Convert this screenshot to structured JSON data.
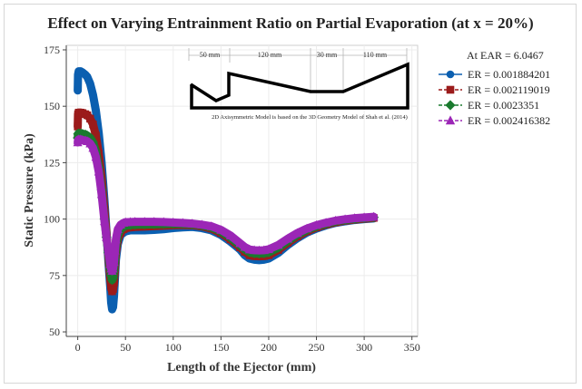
{
  "chart_data": {
    "type": "line",
    "title": "Effect on Varying Entrainment Ratio on Partial Evaporation (at x = 20%)",
    "xlabel": "Length of the Ejector (mm)",
    "ylabel": "Static Pressure (kPa)",
    "xlim": [
      -12,
      356
    ],
    "ylim": [
      48,
      177
    ],
    "xticks": [
      0,
      50,
      100,
      150,
      200,
      250,
      300,
      350
    ],
    "yticks": [
      50,
      75,
      100,
      125,
      150,
      175
    ],
    "grid": true,
    "legend": {
      "position": "right",
      "header": "At EAR = 6.0467"
    },
    "series": [
      {
        "name": "ER = 0.001884201",
        "color": "#0b5fb0",
        "marker": "circle",
        "line_style": "solid",
        "x": [
          0,
          0.3,
          1,
          3,
          5,
          8,
          10,
          13,
          16,
          19,
          22,
          25,
          28,
          30,
          32,
          34,
          35,
          36,
          37,
          38,
          39,
          40,
          42,
          45,
          48,
          50,
          55,
          60,
          70,
          80,
          90,
          100,
          110,
          120,
          130,
          140,
          150,
          160,
          170,
          175,
          180,
          185,
          190,
          195,
          200,
          210,
          220,
          230,
          240,
          250,
          260,
          270,
          280,
          290,
          300,
          310
        ],
        "y": [
          157,
          164,
          165.5,
          165.5,
          165,
          164,
          163,
          160,
          155,
          148,
          138,
          125,
          108,
          95,
          82,
          70,
          63,
          60,
          61,
          66,
          74,
          82,
          89,
          93,
          94,
          94.5,
          95,
          95,
          95,
          95.2,
          95.5,
          96,
          96.3,
          96.5,
          96,
          95,
          93,
          90,
          86.5,
          84,
          82.5,
          82,
          81.8,
          82,
          82.5,
          85,
          88.5,
          91.5,
          94,
          95.8,
          97.2,
          98.3,
          99,
          99.6,
          100,
          100.3
        ]
      },
      {
        "name": "ER = 0.002119019",
        "color": "#9b1b1b",
        "marker": "square",
        "line_style": "dashed",
        "x": [
          0,
          0.3,
          1,
          3,
          5,
          8,
          10,
          13,
          16,
          19,
          22,
          25,
          28,
          30,
          32,
          34,
          35,
          36,
          37,
          38,
          39,
          40,
          42,
          45,
          48,
          50,
          55,
          60,
          70,
          80,
          90,
          100,
          110,
          120,
          130,
          140,
          150,
          160,
          170,
          175,
          180,
          185,
          190,
          195,
          200,
          210,
          220,
          230,
          240,
          250,
          260,
          270,
          280,
          290,
          300,
          310
        ],
        "y": [
          141,
          146.5,
          147.2,
          147.2,
          147,
          146.5,
          146,
          144.5,
          142,
          137,
          129,
          118,
          104,
          94,
          84,
          74,
          70,
          68,
          69,
          72,
          78,
          85,
          91,
          94,
          95.5,
          96,
          96.3,
          96.5,
          96.7,
          96.9,
          97.1,
          97.3,
          97.4,
          97.3,
          96.8,
          95.8,
          93.8,
          91,
          87.5,
          85.5,
          84,
          83.6,
          83.5,
          83.6,
          84,
          86.3,
          89.5,
          92.3,
          94.6,
          96.3,
          97.6,
          98.6,
          99.3,
          99.8,
          100.2,
          100.5
        ]
      },
      {
        "name": "ER = 0.0023351",
        "color": "#1a7a2e",
        "marker": "diamond",
        "line_style": "dashed",
        "x": [
          0,
          0.3,
          1,
          3,
          5,
          8,
          10,
          13,
          16,
          19,
          22,
          25,
          28,
          30,
          32,
          34,
          35,
          36,
          37,
          38,
          39,
          40,
          42,
          45,
          48,
          50,
          55,
          60,
          70,
          80,
          90,
          100,
          110,
          120,
          130,
          140,
          150,
          160,
          170,
          175,
          180,
          185,
          190,
          195,
          200,
          210,
          220,
          230,
          240,
          250,
          260,
          270,
          280,
          290,
          300,
          310
        ],
        "y": [
          136,
          137.7,
          138,
          138,
          137.8,
          137.5,
          137,
          136,
          134,
          130,
          123,
          113,
          100,
          92,
          85,
          78,
          75,
          73,
          74,
          77,
          82,
          88,
          93,
          95.5,
          96.5,
          97,
          97.3,
          97.5,
          97.6,
          97.7,
          97.8,
          97.9,
          97.9,
          97.7,
          97.2,
          96.3,
          94.5,
          91.8,
          88.3,
          86.5,
          85.2,
          84.8,
          84.7,
          84.8,
          85.2,
          87.3,
          90.3,
          93,
          95.2,
          96.8,
          98,
          99,
          99.6,
          100.1,
          100.5,
          100.8
        ]
      },
      {
        "name": "ER = 0.002416382",
        "color": "#9b26b6",
        "marker": "triangle",
        "line_style": "dashed",
        "x": [
          0,
          0.3,
          1,
          3,
          5,
          8,
          10,
          13,
          16,
          19,
          22,
          25,
          28,
          30,
          32,
          34,
          35,
          36,
          37,
          38,
          39,
          40,
          42,
          45,
          48,
          50,
          55,
          60,
          70,
          80,
          90,
          100,
          110,
          120,
          130,
          140,
          150,
          160,
          170,
          175,
          180,
          185,
          190,
          195,
          200,
          210,
          220,
          230,
          240,
          250,
          260,
          270,
          280,
          290,
          300,
          310
        ],
        "y": [
          134,
          135,
          135.3,
          135.3,
          135,
          134.8,
          134.5,
          133.5,
          131.5,
          127.5,
          121,
          111,
          99,
          92,
          86,
          80,
          78,
          77,
          78,
          81,
          86,
          91,
          95.5,
          97.5,
          98.3,
          98.6,
          98.7,
          98.8,
          98.8,
          98.8,
          98.7,
          98.5,
          98.3,
          98,
          97.5,
          96.8,
          95.2,
          92.7,
          89.3,
          87.6,
          86.5,
          86.2,
          86.1,
          86.2,
          86.6,
          88.5,
          91.3,
          93.8,
          95.8,
          97.3,
          98.4,
          99.3,
          99.9,
          100.4,
          100.7,
          101
        ]
      }
    ],
    "inset": {
      "dimension_labels": [
        "50 mm",
        "120 mm",
        "30 mm",
        "110 mm"
      ],
      "caption": "2D Axisymmetric Model is based on the 3D Geometry Model of Shah et al. (2014)"
    }
  }
}
